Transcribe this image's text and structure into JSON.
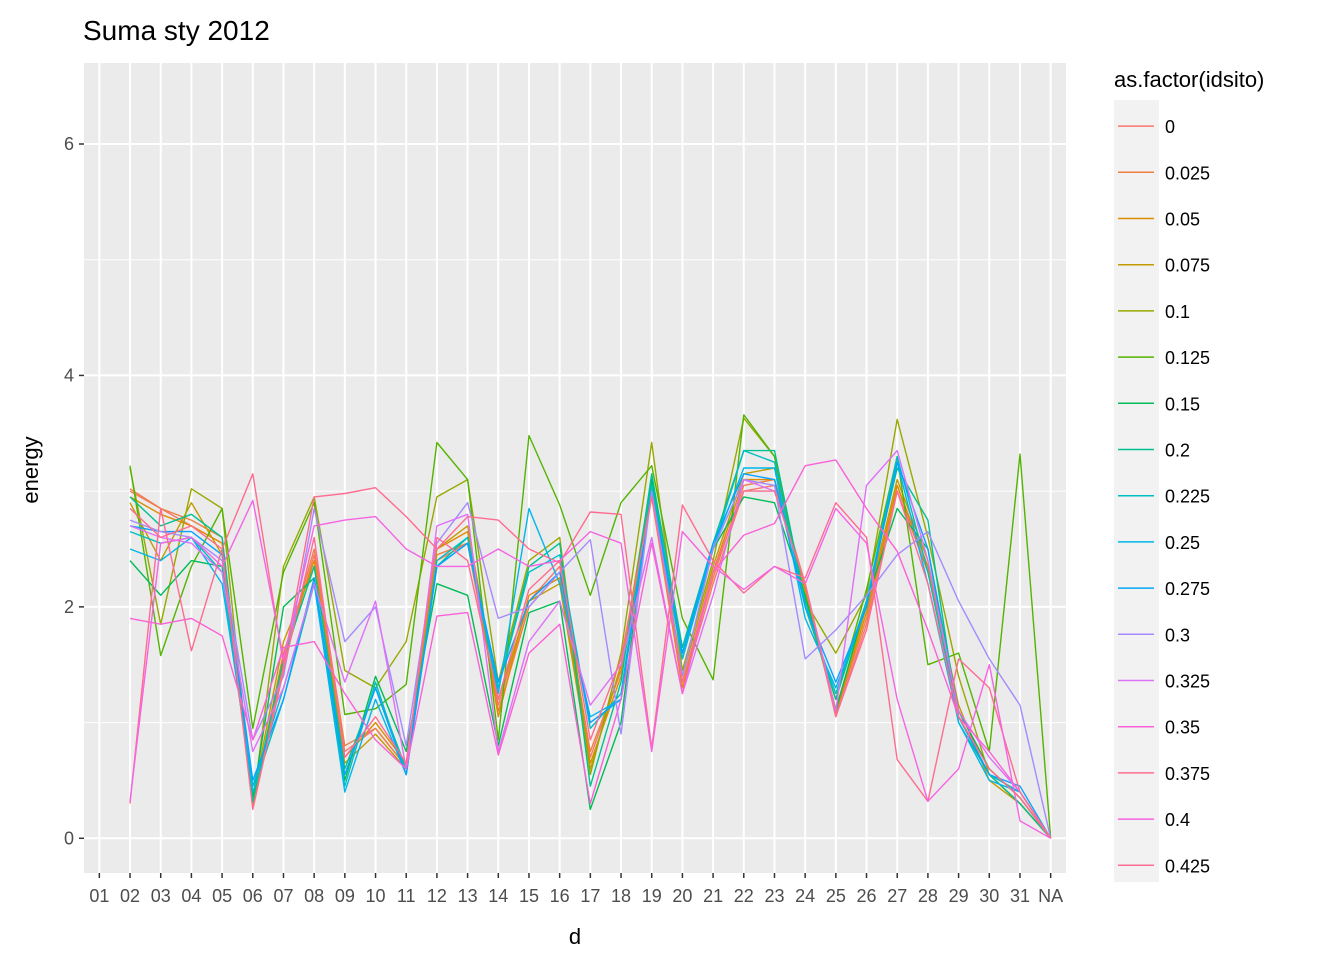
{
  "chart_data": {
    "type": "line",
    "title": "Suma sty 2012",
    "xlabel": "d",
    "ylabel": "energy",
    "categories": [
      "01",
      "02",
      "03",
      "04",
      "05",
      "06",
      "07",
      "08",
      "09",
      "10",
      "11",
      "12",
      "13",
      "14",
      "15",
      "16",
      "17",
      "18",
      "19",
      "20",
      "21",
      "22",
      "23",
      "24",
      "25",
      "26",
      "27",
      "28",
      "29",
      "30",
      "31",
      "NA"
    ],
    "ylim": [
      -0.3,
      6.7
    ],
    "yticks": [
      0,
      2,
      4,
      6
    ],
    "grid": true,
    "legend": {
      "title": "as.factor(idsito)",
      "placement": "right"
    },
    "series": [
      {
        "name": "0",
        "color": "#F8766D",
        "values": [
          null,
          3.0,
          2.85,
          2.7,
          2.55,
          0.3,
          1.5,
          2.45,
          0.75,
          0.95,
          0.62,
          2.4,
          2.55,
          1.15,
          2.05,
          2.35,
          0.7,
          1.45,
          3.0,
          1.3,
          2.2,
          3.0,
          3.05,
          2.2,
          1.05,
          1.85,
          3.0,
          2.3,
          1.1,
          0.6,
          0.35,
          0.0
        ]
      },
      {
        "name": "0.025",
        "color": "#EE8044",
        "values": [
          null,
          3.02,
          2.85,
          2.75,
          2.6,
          0.28,
          1.55,
          2.5,
          0.8,
          0.95,
          0.62,
          2.45,
          2.55,
          1.1,
          2.0,
          2.3,
          0.75,
          1.45,
          3.05,
          1.35,
          2.25,
          3.05,
          3.1,
          2.2,
          1.08,
          1.9,
          3.05,
          2.3,
          1.1,
          0.6,
          0.35,
          0.0
        ]
      },
      {
        "name": "0.05",
        "color": "#DE8C00",
        "values": [
          null,
          2.95,
          2.8,
          2.7,
          2.55,
          0.3,
          1.6,
          2.4,
          0.7,
          1.0,
          0.65,
          2.5,
          2.65,
          1.05,
          2.1,
          2.25,
          0.65,
          1.4,
          2.95,
          1.3,
          2.3,
          3.1,
          3.1,
          2.15,
          1.1,
          1.95,
          3.05,
          2.35,
          1.05,
          0.55,
          0.3,
          0.0
        ]
      },
      {
        "name": "0.075",
        "color": "#C49A00",
        "values": [
          null,
          2.9,
          2.4,
          2.9,
          2.45,
          0.35,
          1.7,
          2.35,
          0.65,
          0.9,
          0.6,
          2.5,
          2.7,
          1.2,
          2.05,
          2.2,
          0.6,
          1.5,
          3.1,
          1.4,
          2.35,
          3.15,
          3.2,
          2.1,
          1.12,
          2.0,
          3.1,
          2.4,
          1.15,
          0.5,
          0.3,
          0.0
        ]
      },
      {
        "name": "0.1",
        "color": "#99A800",
        "values": [
          null,
          3.2,
          1.85,
          3.02,
          2.85,
          0.28,
          2.35,
          2.95,
          1.45,
          1.3,
          1.7,
          2.95,
          3.1,
          1.35,
          2.4,
          2.6,
          0.55,
          1.6,
          3.42,
          1.45,
          2.4,
          3.63,
          3.3,
          2.05,
          1.6,
          2.1,
          3.62,
          2.6,
          1.4,
          0.55,
          0.3,
          0.0
        ]
      },
      {
        "name": "0.125",
        "color": "#53B400",
        "values": [
          null,
          3.22,
          1.58,
          2.35,
          2.85,
          0.95,
          2.3,
          2.9,
          1.07,
          1.12,
          1.33,
          3.42,
          3.1,
          0.85,
          3.48,
          2.88,
          2.1,
          2.9,
          3.22,
          1.9,
          1.37,
          3.66,
          3.3,
          2.0,
          1.2,
          2.15,
          3.3,
          1.5,
          1.6,
          0.75,
          3.32,
          0.0
        ]
      },
      {
        "name": "0.15",
        "color": "#00BC56",
        "values": [
          null,
          2.4,
          2.1,
          2.4,
          2.35,
          0.35,
          2.0,
          2.25,
          0.5,
          1.4,
          0.75,
          2.2,
          2.1,
          0.8,
          1.95,
          2.05,
          0.25,
          1.0,
          3.1,
          1.55,
          2.5,
          2.95,
          2.9,
          2.1,
          1.1,
          2.05,
          2.85,
          2.5,
          1.1,
          0.6,
          0.35,
          0.0
        ]
      },
      {
        "name": "0.2",
        "color": "#00C094",
        "values": [
          null,
          2.95,
          2.7,
          2.8,
          2.6,
          0.32,
          1.55,
          2.35,
          0.6,
          1.3,
          0.6,
          2.35,
          2.6,
          1.3,
          2.35,
          2.55,
          0.45,
          1.35,
          3.15,
          1.65,
          2.55,
          3.35,
          3.35,
          2.05,
          1.2,
          2.05,
          3.2,
          2.75,
          1.0,
          0.55,
          0.3,
          0.0
        ]
      },
      {
        "name": "0.225",
        "color": "#00BFC4",
        "values": [
          null,
          2.65,
          2.55,
          2.6,
          2.3,
          0.4,
          1.2,
          2.2,
          0.45,
          1.35,
          0.55,
          2.4,
          2.6,
          1.3,
          2.3,
          2.45,
          0.95,
          1.25,
          3.05,
          1.6,
          2.5,
          3.35,
          3.25,
          2.0,
          1.25,
          2.05,
          3.3,
          2.3,
          1.05,
          0.55,
          0.4,
          0.0
        ]
      },
      {
        "name": "0.25",
        "color": "#00B6EB",
        "values": [
          null,
          2.5,
          2.4,
          2.6,
          2.2,
          0.45,
          1.3,
          2.2,
          0.4,
          1.2,
          0.55,
          2.35,
          2.55,
          1.25,
          2.85,
          2.2,
          1.05,
          1.2,
          3.0,
          1.55,
          2.5,
          3.2,
          3.2,
          1.9,
          1.3,
          2.0,
          3.25,
          2.2,
          1.0,
          0.5,
          0.4,
          0.0
        ]
      },
      {
        "name": "0.275",
        "color": "#06A4FF",
        "values": [
          null,
          2.7,
          2.65,
          2.65,
          2.45,
          0.5,
          1.2,
          2.25,
          0.55,
          1.3,
          0.55,
          2.35,
          2.55,
          1.35,
          2.05,
          2.3,
          1.0,
          1.2,
          3.0,
          1.6,
          2.55,
          3.15,
          3.1,
          2.0,
          1.35,
          2.0,
          3.25,
          2.5,
          1.05,
          0.55,
          0.45,
          0.0
        ]
      },
      {
        "name": "0.3",
        "color": "#A58AFF",
        "values": [
          null,
          2.75,
          2.65,
          2.6,
          2.4,
          0.85,
          1.4,
          2.85,
          1.7,
          2.0,
          0.8,
          2.55,
          2.9,
          1.9,
          2.0,
          2.3,
          2.58,
          0.9,
          3.0,
          1.4,
          2.5,
          3.1,
          3.05,
          1.55,
          1.8,
          2.1,
          2.45,
          2.65,
          2.05,
          1.55,
          1.15,
          0.0
        ]
      },
      {
        "name": "0.325",
        "color": "#DF70F8",
        "values": [
          null,
          2.7,
          2.6,
          2.55,
          2.3,
          0.75,
          1.3,
          2.2,
          1.35,
          2.05,
          0.6,
          2.7,
          2.8,
          0.75,
          1.7,
          2.05,
          1.15,
          1.5,
          2.6,
          1.25,
          2.1,
          3.1,
          3.0,
          2.2,
          1.1,
          3.05,
          3.35,
          2.4,
          1.1,
          0.7,
          0.4,
          0.0
        ]
      },
      {
        "name": "0.35",
        "color": "#FB61D7",
        "values": [
          null,
          1.9,
          1.85,
          1.9,
          1.75,
          0.85,
          1.65,
          1.7,
          1.25,
          0.85,
          0.6,
          1.92,
          1.95,
          0.72,
          1.6,
          1.85,
          0.3,
          1.2,
          2.55,
          1.25,
          2.3,
          2.62,
          2.72,
          3.22,
          3.27,
          2.85,
          2.48,
          1.8,
          1.05,
          0.75,
          0.4,
          0.0
        ]
      },
      {
        "name": "0.375",
        "color": "#FF6C91",
        "values": [
          null,
          0.3,
          2.85,
          1.62,
          2.5,
          3.15,
          1.5,
          2.95,
          2.98,
          3.03,
          2.78,
          2.5,
          2.78,
          2.75,
          2.5,
          2.38,
          2.82,
          2.8,
          0.78,
          2.88,
          2.4,
          2.12,
          2.35,
          2.25,
          2.9,
          2.6,
          0.68,
          0.32,
          1.55,
          1.3,
          0.4,
          0.0
        ]
      },
      {
        "name": "0.4",
        "color": "#F564E3",
        "values": [
          null,
          0.32,
          2.55,
          2.6,
          2.35,
          2.92,
          1.55,
          2.7,
          2.75,
          2.78,
          2.5,
          2.35,
          2.35,
          2.5,
          2.35,
          2.4,
          2.65,
          2.55,
          0.75,
          2.65,
          2.35,
          2.15,
          2.35,
          2.2,
          2.85,
          2.55,
          1.2,
          0.32,
          0.6,
          1.5,
          0.15,
          0.0
        ]
      },
      {
        "name": "0.425",
        "color": "#FF6C91",
        "values": [
          null,
          2.85,
          2.6,
          2.7,
          2.5,
          0.25,
          1.45,
          2.6,
          0.7,
          1.05,
          0.65,
          2.6,
          2.4,
          1.2,
          2.15,
          2.4,
          0.85,
          1.55,
          2.95,
          1.35,
          2.3,
          3.0,
          3.0,
          2.2,
          1.05,
          1.8,
          3.0,
          2.2,
          1.05,
          0.6,
          0.35,
          0.0
        ]
      }
    ]
  }
}
